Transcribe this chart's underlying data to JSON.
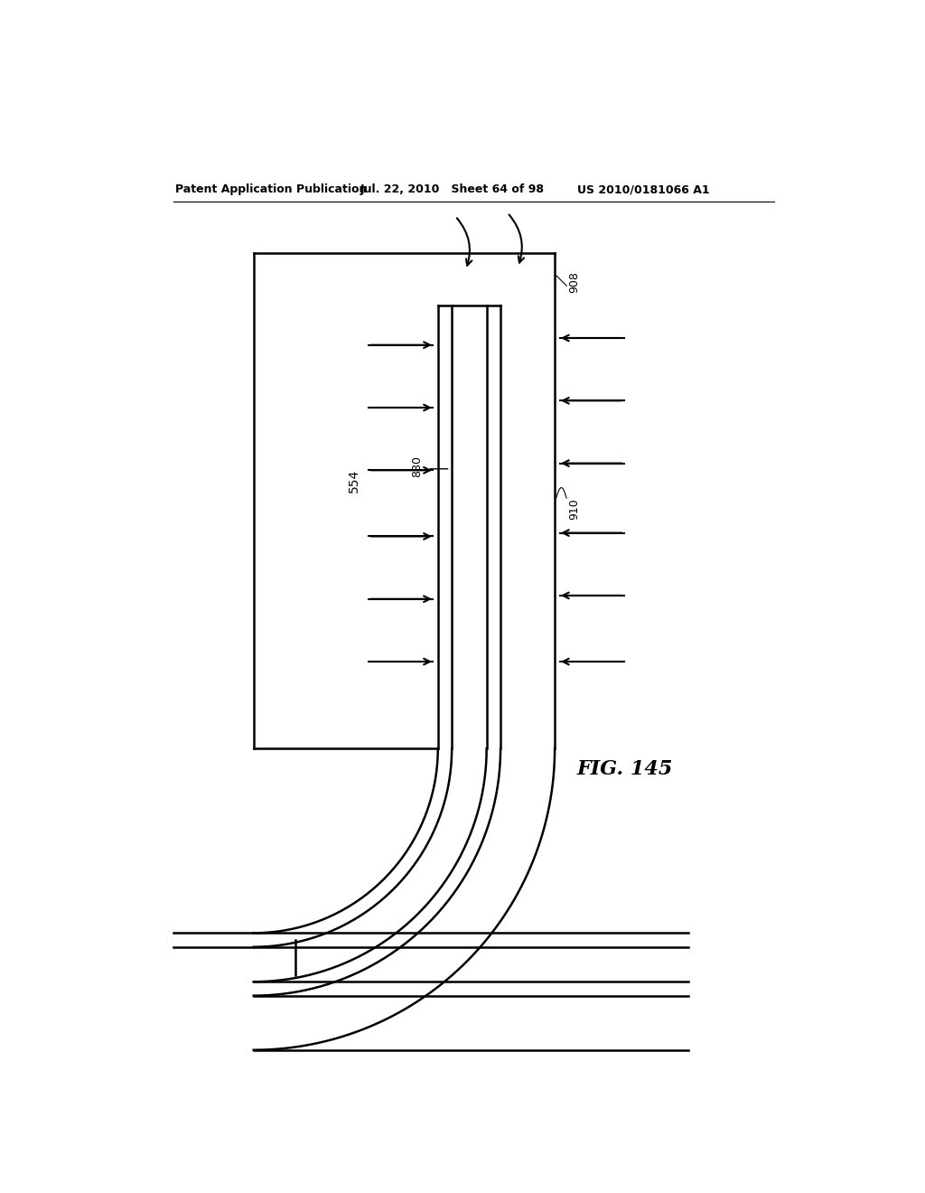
{
  "header_left": "Patent Application Publication",
  "header_mid": "Jul. 22, 2010   Sheet 64 of 98",
  "header_right": "US 2010/0181066 A1",
  "fig_label": "FIG. 145",
  "label_554": "554",
  "label_880": "880",
  "label_908": "908",
  "label_910": "910",
  "bg_color": "#ffffff",
  "line_color": "#000000",
  "lw": 1.8
}
